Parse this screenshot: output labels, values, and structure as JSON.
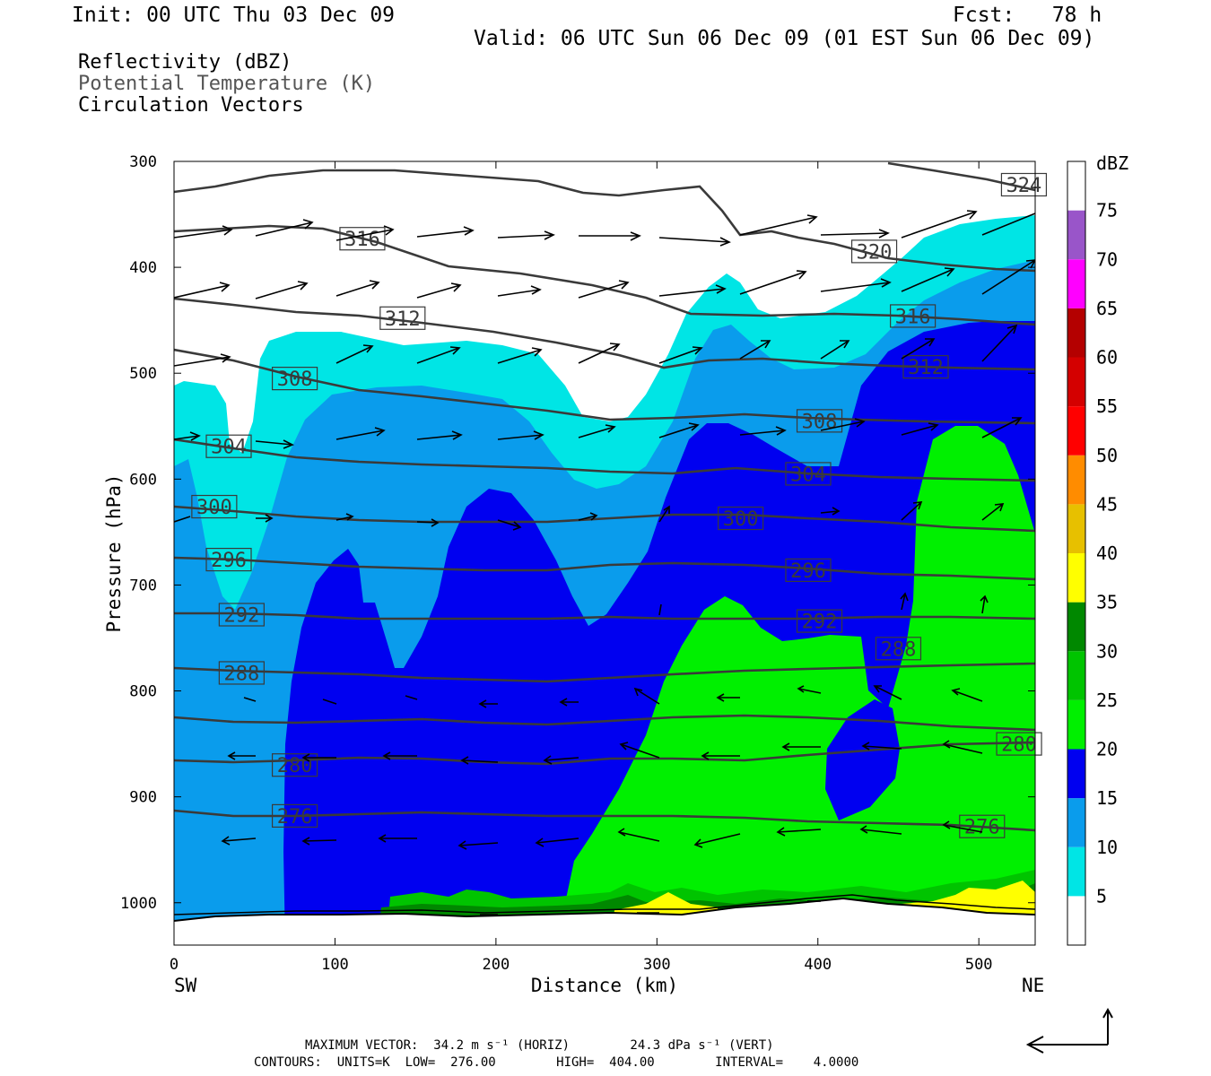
{
  "header": {
    "init": "Init: 00 UTC Thu 03 Dec 09",
    "fcst": "Fcst:   78 h",
    "valid": "Valid: 06 UTC Sun 06 Dec 09 (01 EST Sun 06 Dec 09)"
  },
  "legend": {
    "line1": "Reflectivity (dBZ)",
    "line2": "Potential Temperature (K)",
    "line3": "Circulation Vectors"
  },
  "footer": {
    "line1": "MAXIMUM VECTOR:  34.2 m s⁻¹ (HORIZ)        24.3 dPa s⁻¹ (VERT)",
    "line2": "CONTOURS:  UNITS=K  LOW=  276.00        HIGH=  404.00        INTERVAL=    4.0000"
  },
  "chart_data": {
    "type": "heatmap",
    "title": "",
    "xlabel": "Distance (km)",
    "ylabel": "Pressure (hPa)",
    "xlim": [
      0,
      535
    ],
    "ylim": [
      1040,
      300
    ],
    "x_ticks": [
      "0",
      "100",
      "200",
      "300",
      "400",
      "500"
    ],
    "y_ticks": [
      "300",
      "400",
      "500",
      "600",
      "700",
      "800",
      "900",
      "1000"
    ],
    "x_end_labels": {
      "left": "SW",
      "right": "NE"
    },
    "colorbar": {
      "title": "dBZ",
      "levels": [
        "5",
        "10",
        "15",
        "20",
        "25",
        "30",
        "35",
        "40",
        "45",
        "50",
        "55",
        "60",
        "65",
        "70",
        "75"
      ],
      "colors": [
        "#ffffff",
        "#00e5e5",
        "#0a9cec",
        "#0000f0",
        "#00f000",
        "#00c400",
        "#008800",
        "#ffff00",
        "#e7c000",
        "#ff8c00",
        "#ff0000",
        "#d40000",
        "#b40000",
        "#ff00ff",
        "#9955c9",
        "#ffffff"
      ]
    },
    "theta_contour_labels": [
      {
        "value": "324",
        "x": 528,
        "p": 322
      },
      {
        "value": "320",
        "x": 435,
        "p": 385
      },
      {
        "value": "316",
        "x": 117,
        "p": 373
      },
      {
        "value": "316",
        "x": 459,
        "p": 446
      },
      {
        "value": "312",
        "x": 142,
        "p": 448
      },
      {
        "value": "312",
        "x": 467,
        "p": 494
      },
      {
        "value": "308",
        "x": 75,
        "p": 505
      },
      {
        "value": "308",
        "x": 401,
        "p": 545
      },
      {
        "value": "304",
        "x": 34,
        "p": 569
      },
      {
        "value": "304",
        "x": 394,
        "p": 595
      },
      {
        "value": "300",
        "x": 25,
        "p": 626
      },
      {
        "value": "300",
        "x": 352,
        "p": 637
      },
      {
        "value": "296",
        "x": 34,
        "p": 676
      },
      {
        "value": "296",
        "x": 394,
        "p": 686
      },
      {
        "value": "292",
        "x": 42,
        "p": 728
      },
      {
        "value": "292",
        "x": 401,
        "p": 734
      },
      {
        "value": "288",
        "x": 42,
        "p": 783
      },
      {
        "value": "288",
        "x": 450,
        "p": 760
      },
      {
        "value": "280",
        "x": 75,
        "p": 870
      },
      {
        "value": "280",
        "x": 525,
        "p": 850
      },
      {
        "value": "276",
        "x": 75,
        "p": 918
      },
      {
        "value": "276",
        "x": 502,
        "p": 928
      }
    ],
    "vectors_max": {
      "horiz": "34.2 m s-1",
      "vert": "24.3 dPa s-1"
    }
  }
}
